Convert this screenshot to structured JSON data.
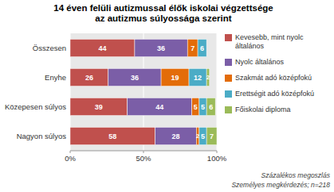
{
  "chart_data": {
    "type": "bar",
    "orientation": "horizontal",
    "stacked": true,
    "title": "14 éven felüli autizmussal élők iskolai végzettsége\naz autizmus súlyossága szerint",
    "categories": [
      "Összesen",
      "Enyhe",
      "Közepesen súlyos",
      "Nagyon súlyos"
    ],
    "series": [
      {
        "name": "Kevesebb, mint nyolc\náltalános",
        "color": "#C0504D",
        "values": [
          44,
          26,
          39,
          58
        ]
      },
      {
        "name": "Nyolc általános",
        "color": "#7B5EA7",
        "values": [
          36,
          36,
          44,
          28
        ]
      },
      {
        "name": "Szakmát adó középfokú",
        "color": "#E36C09",
        "values": [
          7,
          19,
          5,
          2
        ]
      },
      {
        "name": "Erettségit adó középfokú",
        "color": "#4BACC6",
        "values": [
          6,
          12,
          5,
          5
        ]
      },
      {
        "name": "Főiskolai diploma",
        "color": "#9BBB59",
        "values": [
          0,
          2,
          6,
          7
        ]
      }
    ],
    "xlim": [
      0,
      100
    ],
    "xticks": [
      {
        "value": 0,
        "label": "0%"
      },
      {
        "value": 50,
        "label": "50%"
      },
      {
        "value": 100,
        "label": "100%"
      }
    ],
    "grid": true,
    "data_labels": true,
    "legend": "right",
    "annotations": [
      "Százalékos megoszlás",
      "Személyes megkérdezés; n=218"
    ]
  }
}
